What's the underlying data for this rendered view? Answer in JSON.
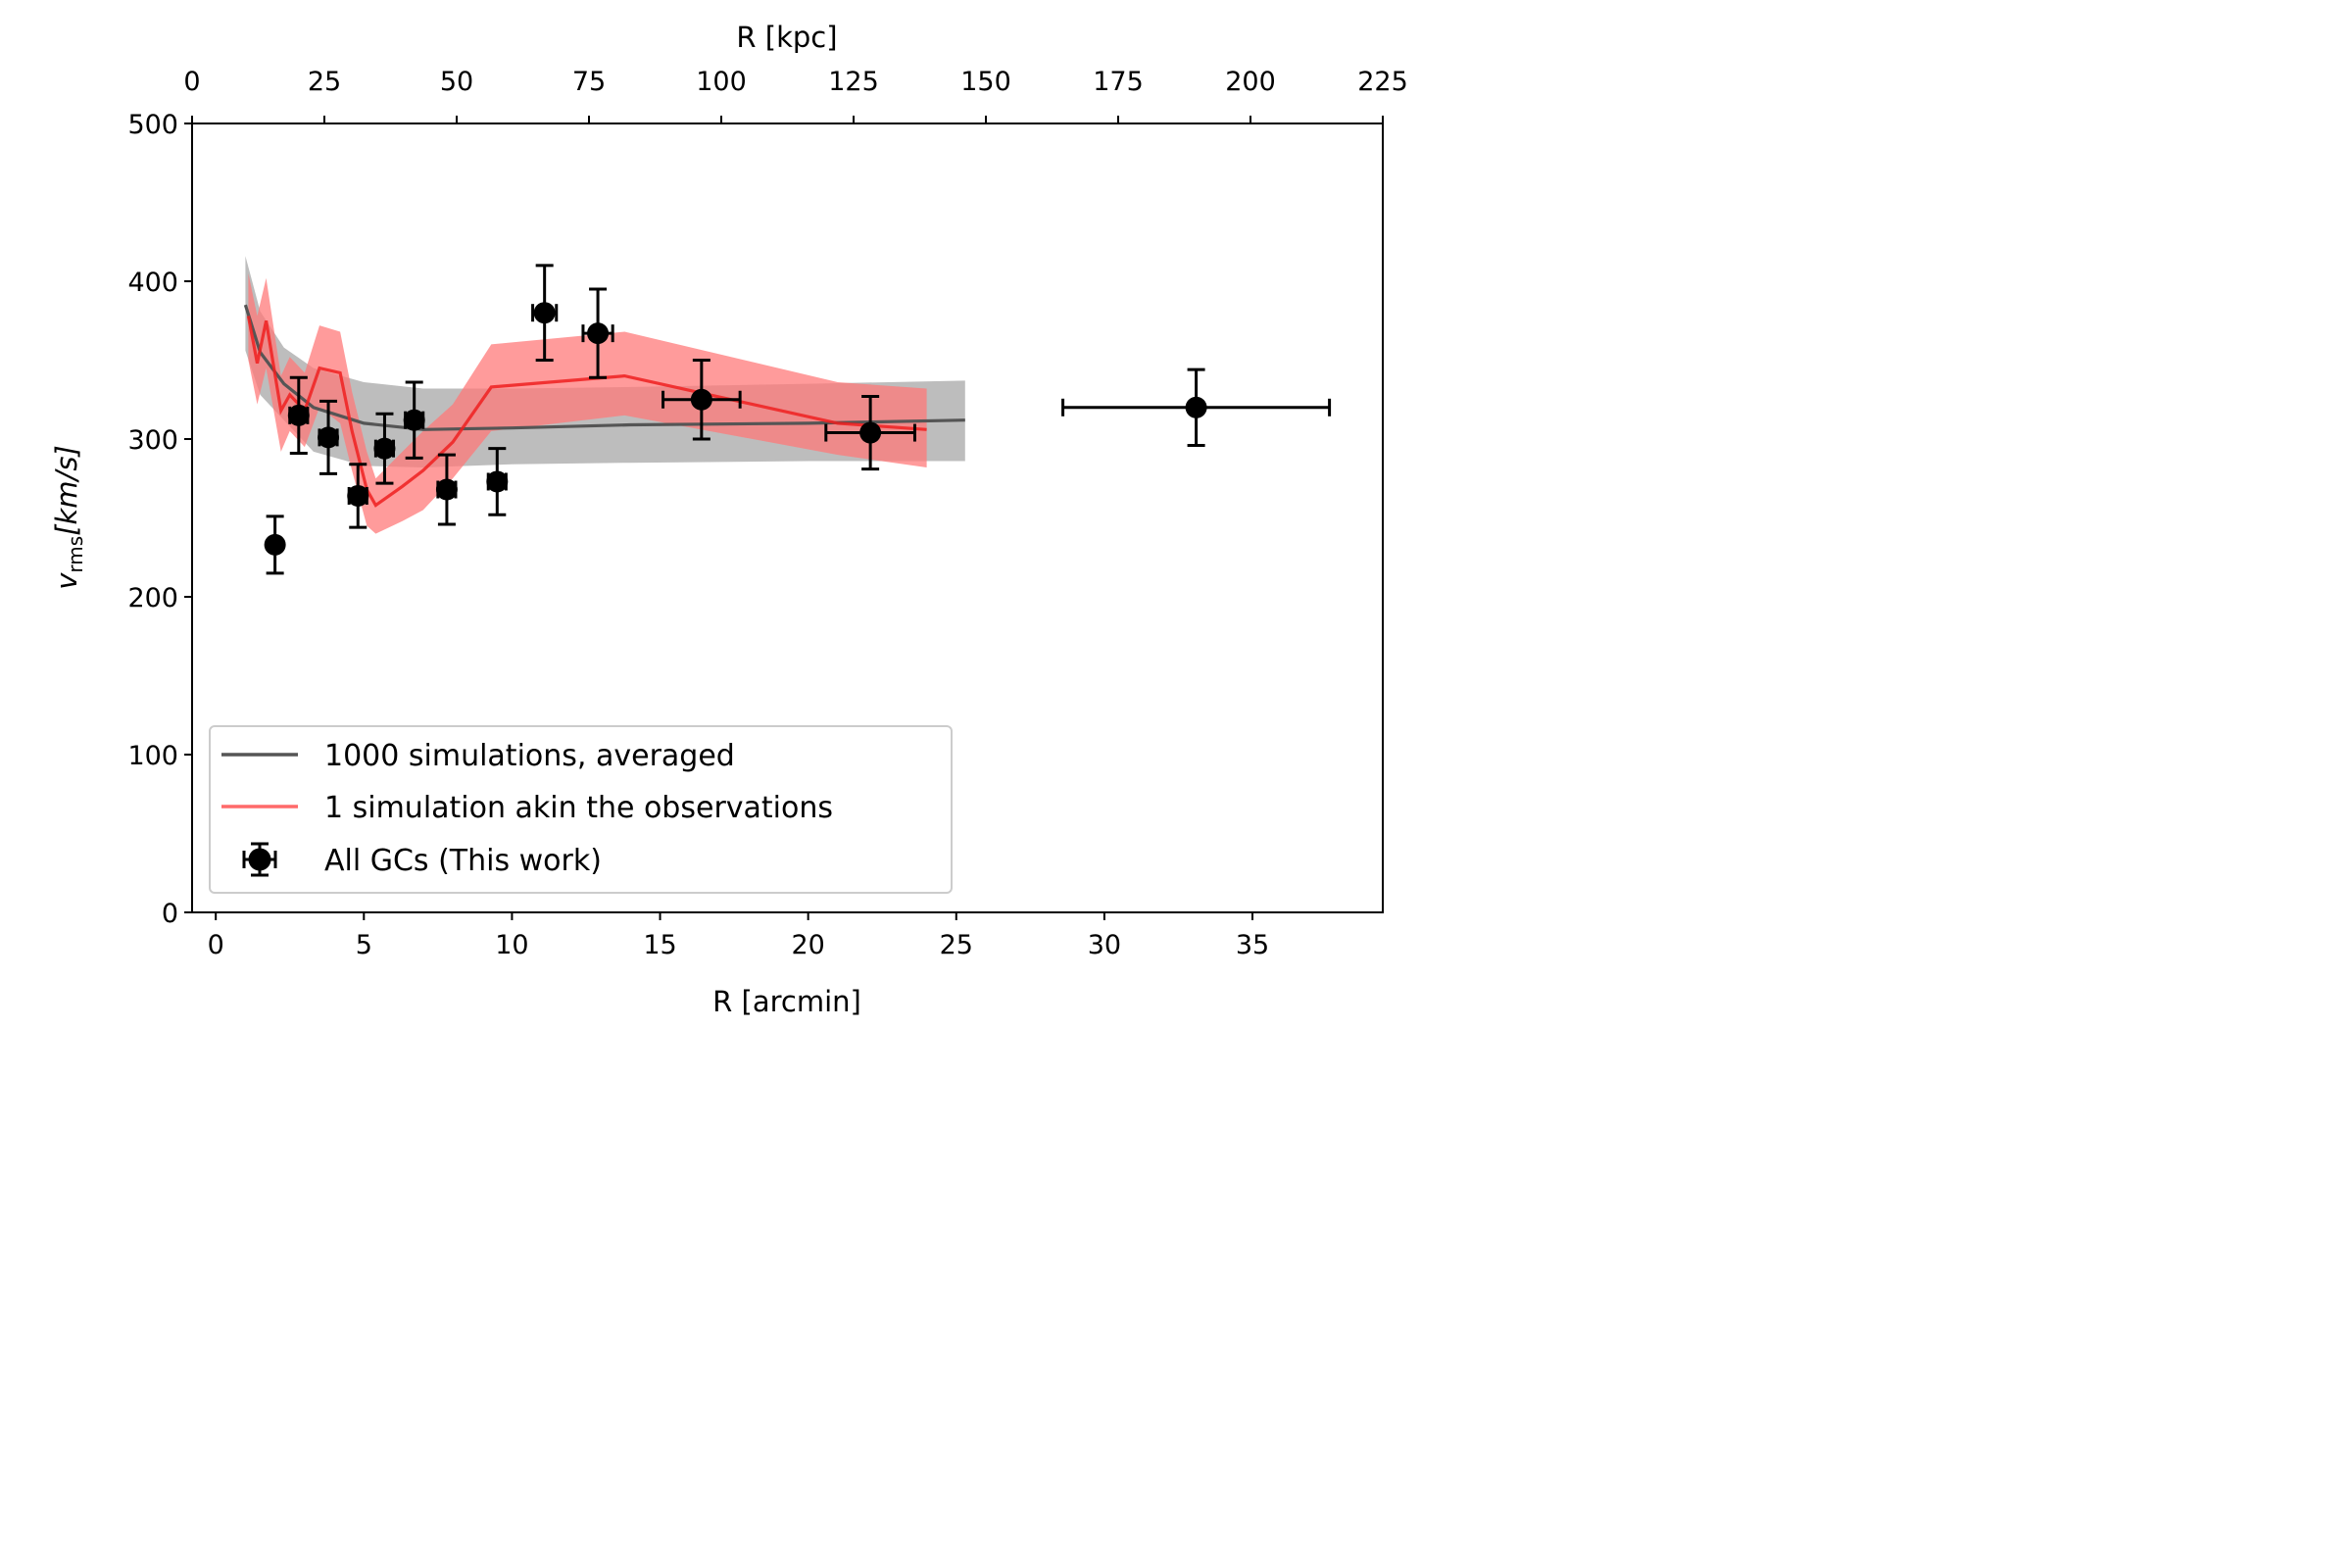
{
  "chart_data": {
    "type": "scatter",
    "xlabel": "R [arcmin]",
    "ylabel": "v_rms[km/s]",
    "ylabel_parts": {
      "symbol": "v",
      "subscript": "rms",
      "unit": "[km/s]"
    },
    "top_xlabel": "R [kpc]",
    "xlim": [
      -0.8,
      39.4
    ],
    "ylim": [
      0,
      500
    ],
    "top_xlim": [
      0,
      225
    ],
    "xticks": [
      "0",
      "5",
      "10",
      "15",
      "20",
      "25",
      "30",
      "35"
    ],
    "yticks": [
      "0",
      "100",
      "200",
      "300",
      "400",
      "500"
    ],
    "top_xticks": [
      "0",
      "25",
      "50",
      "75",
      "100",
      "125",
      "150",
      "175",
      "200",
      "225"
    ],
    "grid": false,
    "legend_position": "lower-left",
    "series": [
      {
        "name": "1000 simulations, averaged",
        "kind": "line-with-band",
        "color": "#555555",
        "band_color": "#bdbdbd",
        "x": [
          1.0,
          1.5,
          2.3,
          3.3,
          5.0,
          7.0,
          10.0,
          14.0,
          20.0,
          25.3
        ],
        "y": [
          385,
          355,
          335,
          320,
          310,
          306,
          307,
          309,
          310,
          312
        ],
        "y_low": [
          356,
          328,
          312,
          292,
          283,
          282,
          284,
          285,
          286,
          286
        ],
        "y_high": [
          416,
          381,
          358,
          345,
          336,
          332,
          332,
          333,
          335,
          337
        ]
      },
      {
        "name": "1 simulation akin the observations",
        "kind": "line-with-band",
        "color": "#ee2020",
        "band_color": "#ff7a7a",
        "x": [
          1.1,
          1.4,
          1.7,
          2.2,
          2.5,
          3.0,
          3.5,
          4.2,
          4.6,
          5.1,
          5.4,
          6.3,
          7.0,
          8.0,
          9.3,
          13.8,
          21.0,
          24.0
        ],
        "y": [
          378,
          348,
          375,
          318,
          328,
          318,
          345,
          342,
          305,
          268,
          258,
          270,
          280,
          298,
          333,
          340,
          310,
          306
        ],
        "y_low": [
          350,
          322,
          345,
          292,
          305,
          295,
          320,
          310,
          280,
          245,
          240,
          248,
          255,
          275,
          305,
          315,
          290,
          282
        ],
        "y_high": [
          405,
          378,
          402,
          340,
          352,
          342,
          372,
          368,
          330,
          292,
          275,
          292,
          305,
          322,
          360,
          368,
          336,
          332
        ]
      },
      {
        "name": "All GCs (This work)",
        "kind": "errorbar",
        "color": "#000000",
        "x": [
          2.0,
          2.8,
          3.8,
          4.8,
          5.7,
          6.7,
          7.8,
          9.5,
          11.1,
          12.9,
          16.4,
          22.1,
          33.1
        ],
        "y": [
          233,
          315,
          301,
          264,
          294,
          312,
          268,
          273,
          380,
          367,
          325,
          304,
          320
        ],
        "xerr": [
          0.15,
          0.3,
          0.3,
          0.3,
          0.3,
          0.3,
          0.3,
          0.3,
          0.4,
          0.5,
          1.3,
          1.5,
          4.5
        ],
        "yerr": [
          18,
          24,
          23,
          20,
          22,
          24,
          22,
          21,
          30,
          28,
          25,
          23,
          24
        ]
      }
    ]
  }
}
